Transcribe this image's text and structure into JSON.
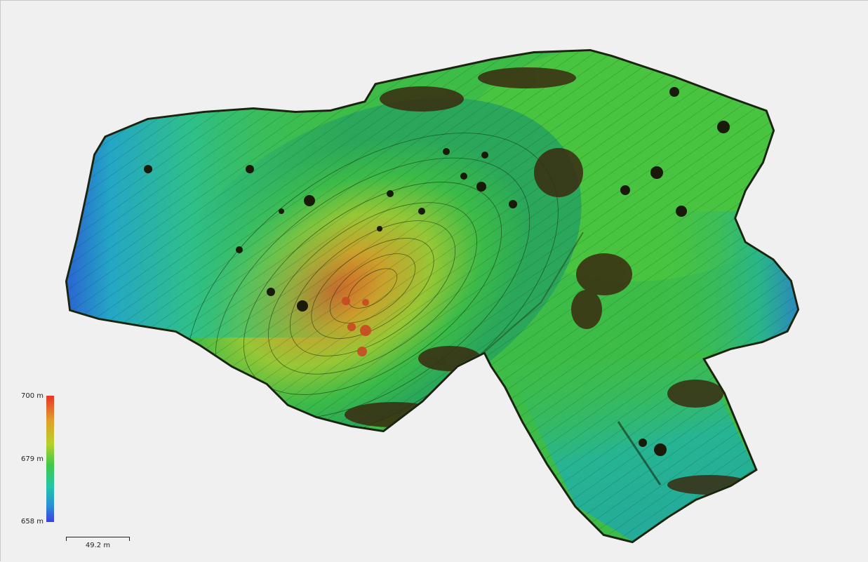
{
  "legend": {
    "max_label": "700 m",
    "mid_label": "679 m",
    "min_label": "658 m",
    "colors": [
      "#e8362a",
      "#e0a12a",
      "#b8d12a",
      "#3fc94a",
      "#22c6a8",
      "#2a8fd8",
      "#3b3fe0"
    ]
  },
  "scale": {
    "label": "49.2 m"
  },
  "map": {
    "type": "elevation-dem-with-contours",
    "background_color": "#f0f0f0"
  }
}
